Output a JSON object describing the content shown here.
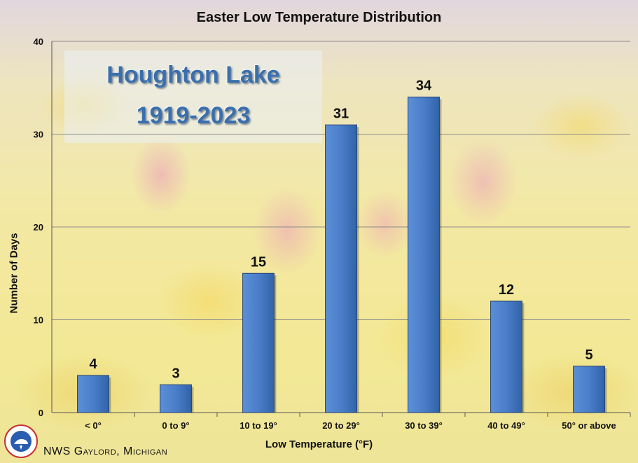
{
  "chart_data": {
    "type": "bar",
    "title": "Easter Low Temperature Distribution",
    "station": [
      "Houghton Lake",
      "1919-2023"
    ],
    "xlabel": "Low Temperature (°F)",
    "ylabel": "Number of Days",
    "categories": [
      "< 0°",
      "0 to 9°",
      "10 to 19°",
      "20 to 29°",
      "30 to 39°",
      "40 to 49°",
      "50° or above"
    ],
    "values": [
      4,
      3,
      15,
      31,
      34,
      12,
      5
    ],
    "ylim": [
      0,
      40
    ],
    "yticks": [
      0,
      10,
      20,
      30,
      40
    ],
    "grid": true,
    "bar_color": "#4a7ec9"
  },
  "footer": "NWS Gaylord, Michigan",
  "logo_icon": "nws-logo-icon"
}
